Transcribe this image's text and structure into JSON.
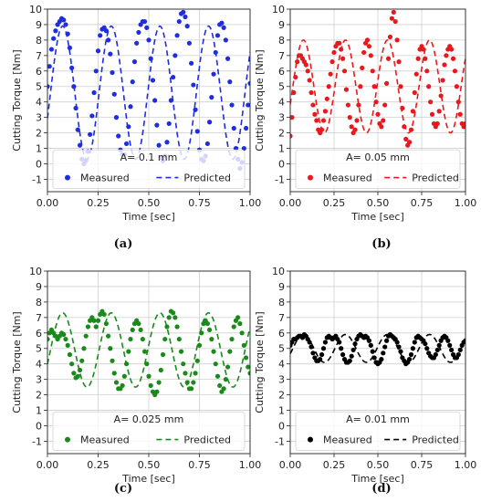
{
  "chart_data": [
    {
      "type": "line",
      "panel_label": "(a)",
      "xlabel": "Time [sec]",
      "ylabel": "Cutting Torque [Nm]",
      "xlim": [
        0,
        1
      ],
      "ylim": [
        -1.8,
        10
      ],
      "x_ticks": [
        "0.00",
        "0.25",
        "0.50",
        "0.75",
        "1.00"
      ],
      "y_ticks": [
        "-1",
        "0",
        "1",
        "2",
        "3",
        "4",
        "5",
        "6",
        "7",
        "8",
        "9",
        "10"
      ],
      "grid": true,
      "legend": {
        "placement": "bottom",
        "title": "A= 0.1 mm",
        "entries": [
          "Measured",
          "Predicted"
        ]
      },
      "color": "#1f2de0",
      "predicted_model": {
        "offset": 4.6,
        "amplitude": 4.3,
        "period": 0.24,
        "phase_peak": 0.075
      },
      "series": [
        {
          "name": "Measured",
          "style": "points",
          "x": [
            0.0,
            0.01,
            0.02,
            0.03,
            0.04,
            0.05,
            0.06,
            0.07,
            0.08,
            0.09,
            0.1,
            0.11,
            0.12,
            0.13,
            0.14,
            0.15,
            0.16,
            0.17,
            0.18,
            0.19,
            0.2,
            0.21,
            0.22,
            0.23,
            0.24,
            0.25,
            0.26,
            0.27,
            0.28,
            0.29,
            0.3,
            0.31,
            0.32,
            0.33,
            0.34,
            0.35,
            0.36,
            0.37,
            0.38,
            0.39,
            0.4,
            0.41,
            0.42,
            0.43,
            0.44,
            0.45,
            0.46,
            0.47,
            0.48,
            0.49,
            0.5,
            0.51,
            0.52,
            0.53,
            0.54,
            0.55,
            0.56,
            0.57,
            0.58,
            0.59,
            0.6,
            0.61,
            0.62,
            0.63,
            0.64,
            0.65,
            0.66,
            0.67,
            0.68,
            0.69,
            0.7,
            0.71,
            0.72,
            0.73,
            0.74,
            0.75,
            0.76,
            0.77,
            0.78,
            0.79,
            0.8,
            0.81,
            0.82,
            0.83,
            0.84,
            0.85,
            0.86,
            0.87,
            0.88,
            0.89,
            0.9,
            0.91,
            0.92,
            0.93,
            0.94,
            0.95,
            0.96,
            0.97,
            0.98,
            0.99,
            1.0
          ],
          "y": [
            5.0,
            6.3,
            7.4,
            8.1,
            8.6,
            9.0,
            9.2,
            9.4,
            9.3,
            9.0,
            8.4,
            7.5,
            6.2,
            5.0,
            3.6,
            2.2,
            1.2,
            0.3,
            0.0,
            0.2,
            0.8,
            1.9,
            3.1,
            4.6,
            6.0,
            7.3,
            8.3,
            8.7,
            8.8,
            8.6,
            8.0,
            7.1,
            5.9,
            4.5,
            3.0,
            1.8,
            0.9,
            0.6,
            0.6,
            1.3,
            2.4,
            3.7,
            5.3,
            6.6,
            7.8,
            8.5,
            9.0,
            9.2,
            9.2,
            8.8,
            8.0,
            6.8,
            5.4,
            4.1,
            2.5,
            1.2,
            0.4,
            0.2,
            0.5,
            1.4,
            2.6,
            4.1,
            5.6,
            7.0,
            8.3,
            9.2,
            9.7,
            9.8,
            9.5,
            8.9,
            7.8,
            6.5,
            5.1,
            3.5,
            2.1,
            0.9,
            0.3,
            0.2,
            0.5,
            1.3,
            2.7,
            4.3,
            5.8,
            7.2,
            8.3,
            9.0,
            9.1,
            8.8,
            8.0,
            6.8,
            5.3,
            3.8,
            2.3,
            1.0,
            0.3,
            -0.3,
            0.1,
            1.0,
            2.3,
            3.8,
            5.2
          ]
        },
        {
          "name": "Predicted",
          "style": "dashed",
          "x": [],
          "y": []
        }
      ]
    },
    {
      "type": "line",
      "panel_label": "(b)",
      "xlabel": "Time [sec]",
      "ylabel": "Cutting Torque [Nm]",
      "xlim": [
        0,
        1
      ],
      "ylim": [
        -1.8,
        10
      ],
      "x_ticks": [
        "0.00",
        "0.25",
        "0.50",
        "0.75",
        "1.00"
      ],
      "y_ticks": [
        "-1",
        "0",
        "1",
        "2",
        "3",
        "4",
        "5",
        "6",
        "7",
        "8",
        "9",
        "10"
      ],
      "grid": true,
      "legend": {
        "placement": "bottom",
        "title": "A= 0.05 mm",
        "entries": [
          "Measured",
          "Predicted"
        ]
      },
      "color": "#e8191c",
      "predicted_model": {
        "offset": 5.0,
        "amplitude": 3.0,
        "period": 0.24,
        "phase_peak": 0.075
      },
      "series": [
        {
          "name": "Measured",
          "style": "points",
          "x": [
            0.0,
            0.01,
            0.02,
            0.03,
            0.04,
            0.05,
            0.06,
            0.07,
            0.08,
            0.09,
            0.1,
            0.11,
            0.12,
            0.13,
            0.14,
            0.15,
            0.16,
            0.17,
            0.18,
            0.19,
            0.2,
            0.21,
            0.22,
            0.23,
            0.24,
            0.25,
            0.26,
            0.27,
            0.28,
            0.29,
            0.3,
            0.31,
            0.32,
            0.33,
            0.34,
            0.35,
            0.36,
            0.37,
            0.38,
            0.39,
            0.4,
            0.41,
            0.42,
            0.43,
            0.44,
            0.45,
            0.46,
            0.47,
            0.48,
            0.49,
            0.5,
            0.51,
            0.52,
            0.53,
            0.54,
            0.55,
            0.56,
            0.57,
            0.58,
            0.59,
            0.6,
            0.61,
            0.62,
            0.63,
            0.64,
            0.65,
            0.66,
            0.67,
            0.68,
            0.69,
            0.7,
            0.71,
            0.72,
            0.73,
            0.74,
            0.75,
            0.76,
            0.77,
            0.78,
            0.79,
            0.8,
            0.81,
            0.82,
            0.83,
            0.84,
            0.85,
            0.86,
            0.87,
            0.88,
            0.89,
            0.9,
            0.91,
            0.92,
            0.93,
            0.94,
            0.95,
            0.96,
            0.97,
            0.98,
            0.99,
            1.0
          ],
          "y": [
            1.8,
            3.0,
            4.6,
            5.6,
            6.6,
            7.0,
            7.0,
            6.8,
            6.6,
            6.4,
            6.0,
            5.4,
            4.6,
            3.8,
            3.2,
            2.8,
            2.2,
            2.0,
            2.2,
            2.8,
            3.4,
            4.2,
            5.0,
            5.8,
            6.6,
            7.2,
            7.6,
            7.8,
            7.8,
            7.4,
            6.8,
            6.0,
            4.8,
            3.8,
            3.0,
            2.4,
            2.0,
            2.2,
            2.8,
            3.8,
            5.0,
            6.2,
            7.2,
            7.8,
            8.0,
            7.6,
            7.0,
            6.0,
            5.0,
            4.0,
            3.2,
            2.6,
            2.4,
            2.8,
            3.8,
            5.2,
            6.8,
            8.2,
            9.4,
            9.8,
            9.2,
            8.0,
            6.6,
            5.0,
            3.6,
            2.4,
            1.6,
            1.2,
            1.4,
            2.2,
            3.4,
            4.6,
            5.8,
            6.8,
            7.4,
            7.6,
            7.4,
            6.8,
            6.0,
            5.0,
            4.0,
            3.2,
            2.6,
            2.4,
            2.6,
            3.4,
            4.4,
            5.4,
            6.4,
            7.0,
            7.4,
            7.6,
            7.4,
            6.8,
            6.0,
            5.0,
            4.0,
            3.2,
            2.6,
            2.4,
            2.6
          ]
        },
        {
          "name": "Predicted",
          "style": "dashed",
          "x": [],
          "y": []
        }
      ]
    },
    {
      "type": "line",
      "panel_label": "(c)",
      "xlabel": "Time [sec]",
      "ylabel": "Cutting Torque [Nm]",
      "xlim": [
        0,
        1
      ],
      "ylim": [
        -1.8,
        10
      ],
      "x_ticks": [
        "0.00",
        "0.25",
        "0.50",
        "0.75",
        "1.00"
      ],
      "y_ticks": [
        "-1",
        "0",
        "1",
        "2",
        "3",
        "4",
        "5",
        "6",
        "7",
        "8",
        "9",
        "10"
      ],
      "grid": true,
      "legend": {
        "placement": "bottom",
        "title": "A= 0.025 mm",
        "entries": [
          "Measured",
          "Predicted"
        ]
      },
      "color": "#1a8a1a",
      "predicted_model": {
        "offset": 4.9,
        "amplitude": 2.4,
        "period": 0.24,
        "phase_peak": 0.075
      },
      "series": [
        {
          "name": "Measured",
          "style": "points",
          "x": [
            0.0,
            0.01,
            0.02,
            0.03,
            0.04,
            0.05,
            0.06,
            0.07,
            0.08,
            0.09,
            0.1,
            0.11,
            0.12,
            0.13,
            0.14,
            0.15,
            0.16,
            0.17,
            0.18,
            0.19,
            0.2,
            0.21,
            0.22,
            0.23,
            0.24,
            0.25,
            0.26,
            0.27,
            0.28,
            0.29,
            0.3,
            0.31,
            0.32,
            0.33,
            0.34,
            0.35,
            0.36,
            0.37,
            0.38,
            0.39,
            0.4,
            0.41,
            0.42,
            0.43,
            0.44,
            0.45,
            0.46,
            0.47,
            0.48,
            0.49,
            0.5,
            0.51,
            0.52,
            0.53,
            0.54,
            0.55,
            0.56,
            0.57,
            0.58,
            0.59,
            0.6,
            0.61,
            0.62,
            0.63,
            0.64,
            0.65,
            0.66,
            0.67,
            0.68,
            0.69,
            0.7,
            0.71,
            0.72,
            0.73,
            0.74,
            0.75,
            0.76,
            0.77,
            0.78,
            0.79,
            0.8,
            0.81,
            0.82,
            0.83,
            0.84,
            0.85,
            0.86,
            0.87,
            0.88,
            0.89,
            0.9,
            0.91,
            0.92,
            0.93,
            0.94,
            0.95,
            0.96,
            0.97,
            0.98,
            0.99,
            1.0
          ],
          "y": [
            5.6,
            6.0,
            6.2,
            6.0,
            5.8,
            5.6,
            5.8,
            6.0,
            5.9,
            5.6,
            5.2,
            4.6,
            4.0,
            3.4,
            3.1,
            3.2,
            3.6,
            4.2,
            5.0,
            5.8,
            6.4,
            6.8,
            7.0,
            6.8,
            6.4,
            6.8,
            7.2,
            7.4,
            7.2,
            6.6,
            5.8,
            5.0,
            4.2,
            3.4,
            2.8,
            2.4,
            2.4,
            2.6,
            3.2,
            4.0,
            4.8,
            5.6,
            6.2,
            6.6,
            6.8,
            6.6,
            6.2,
            5.6,
            4.8,
            4.0,
            3.2,
            2.6,
            2.2,
            2.0,
            2.2,
            2.8,
            3.6,
            4.6,
            5.6,
            6.4,
            7.0,
            7.4,
            7.3,
            7.0,
            6.4,
            5.6,
            4.8,
            4.0,
            3.4,
            2.8,
            2.4,
            2.4,
            2.8,
            3.4,
            4.2,
            5.2,
            6.0,
            6.6,
            6.8,
            6.6,
            6.2,
            5.6,
            4.8,
            4.0,
            3.2,
            2.6,
            2.2,
            2.4,
            3.0,
            3.8,
            4.8,
            5.6,
            6.4,
            6.8,
            7.0,
            6.6,
            6.0,
            5.2,
            4.4,
            3.8,
            3.4
          ]
        },
        {
          "name": "Predicted",
          "style": "dashed",
          "x": [],
          "y": []
        }
      ]
    },
    {
      "type": "line",
      "panel_label": "(d)",
      "xlabel": "Time [sec]",
      "ylabel": "Cutting Torque [Nm]",
      "xlim": [
        0,
        1
      ],
      "ylim": [
        -1.8,
        10
      ],
      "x_ticks": [
        "0.00",
        "0.25",
        "0.50",
        "0.75",
        "1.00"
      ],
      "y_ticks": [
        "-1",
        "0",
        "1",
        "2",
        "3",
        "4",
        "5",
        "6",
        "7",
        "8",
        "9",
        "10"
      ],
      "grid": true,
      "legend": {
        "placement": "bottom",
        "title": "A= 0.01 mm",
        "entries": [
          "Measured",
          "Predicted"
        ]
      },
      "color": "#000000",
      "predicted_model": {
        "offset": 5.0,
        "amplitude": 0.9,
        "period": 0.24,
        "phase_peak": 0.075
      },
      "series": [
        {
          "name": "Measured",
          "style": "points",
          "x": [
            0.0,
            0.01,
            0.02,
            0.03,
            0.04,
            0.05,
            0.06,
            0.07,
            0.08,
            0.09,
            0.1,
            0.11,
            0.12,
            0.13,
            0.14,
            0.15,
            0.16,
            0.17,
            0.18,
            0.19,
            0.2,
            0.21,
            0.22,
            0.23,
            0.24,
            0.25,
            0.26,
            0.27,
            0.28,
            0.29,
            0.3,
            0.31,
            0.32,
            0.33,
            0.34,
            0.35,
            0.36,
            0.37,
            0.38,
            0.39,
            0.4,
            0.41,
            0.42,
            0.43,
            0.44,
            0.45,
            0.46,
            0.47,
            0.48,
            0.49,
            0.5,
            0.51,
            0.52,
            0.53,
            0.54,
            0.55,
            0.56,
            0.57,
            0.58,
            0.59,
            0.6,
            0.61,
            0.62,
            0.63,
            0.64,
            0.65,
            0.66,
            0.67,
            0.68,
            0.69,
            0.7,
            0.71,
            0.72,
            0.73,
            0.74,
            0.75,
            0.76,
            0.77,
            0.78,
            0.79,
            0.8,
            0.81,
            0.82,
            0.83,
            0.84,
            0.85,
            0.86,
            0.87,
            0.88,
            0.89,
            0.9,
            0.91,
            0.92,
            0.93,
            0.94,
            0.95,
            0.96,
            0.97,
            0.98,
            0.99,
            1.0
          ],
          "y": [
            5.2,
            5.4,
            5.6,
            5.6,
            5.7,
            5.8,
            5.8,
            5.7,
            5.9,
            5.8,
            5.6,
            5.4,
            5.1,
            4.7,
            4.4,
            4.2,
            4.2,
            4.3,
            4.6,
            5.0,
            5.4,
            5.7,
            5.8,
            5.7,
            5.6,
            5.7,
            5.8,
            5.6,
            5.4,
            5.0,
            4.6,
            4.3,
            4.1,
            4.1,
            4.2,
            4.5,
            4.9,
            5.3,
            5.6,
            5.8,
            5.9,
            5.8,
            5.7,
            5.8,
            5.7,
            5.5,
            5.2,
            4.8,
            4.4,
            4.1,
            4.0,
            4.1,
            4.3,
            4.7,
            5.1,
            5.5,
            5.8,
            5.9,
            5.8,
            5.7,
            5.6,
            5.4,
            5.1,
            4.8,
            4.4,
            4.2,
            4.0,
            4.1,
            4.3,
            4.6,
            5.0,
            5.4,
            5.7,
            5.8,
            5.7,
            5.6,
            5.5,
            5.3,
            5.0,
            4.7,
            4.5,
            4.4,
            4.4,
            4.6,
            4.9,
            5.2,
            5.5,
            5.7,
            5.8,
            5.7,
            5.5,
            5.2,
            4.9,
            4.6,
            4.4,
            4.4,
            4.6,
            4.9,
            5.2,
            5.4,
            5.5
          ]
        },
        {
          "name": "Predicted",
          "style": "dashed",
          "x": [],
          "y": []
        }
      ]
    }
  ]
}
